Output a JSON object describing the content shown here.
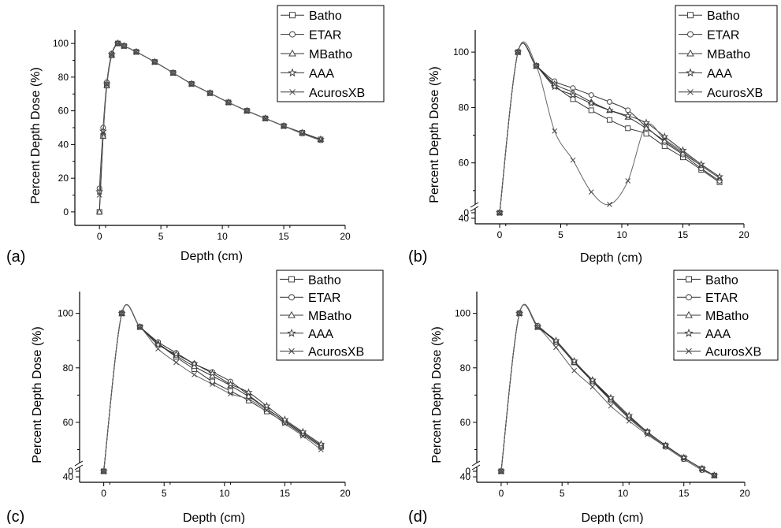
{
  "chart_data": [
    {
      "type": "line",
      "panel_label": "(a)",
      "xlabel": "Depth (cm)",
      "ylabel": "Percent Depth Dose (%)",
      "xlim": [
        -2,
        20
      ],
      "ylim": [
        -8,
        108
      ],
      "x_ticks": [
        0,
        5,
        10,
        15,
        20
      ],
      "y_ticks": [
        0,
        20,
        40,
        60,
        80,
        100
      ],
      "axis_break": false,
      "legend_position": "top-right",
      "series": [
        {
          "name": "Batho",
          "marker": "square",
          "x": [
            0,
            0.3,
            0.6,
            1.0,
            1.5,
            2.0,
            3.0,
            4.5,
            6.0,
            7.5,
            9.0,
            10.5,
            12.0,
            13.5,
            15.0,
            16.5,
            18.0
          ],
          "y": [
            0,
            45,
            75,
            93,
            100,
            98.5,
            95,
            89,
            82.5,
            76,
            70.5,
            65,
            60,
            55.5,
            51,
            47,
            43
          ]
        },
        {
          "name": "ETAR",
          "marker": "circle",
          "x": [
            0,
            0.3,
            0.6,
            1.0,
            1.5,
            2.0,
            3.0,
            4.5,
            6.0,
            7.5,
            9.0,
            10.5,
            12.0,
            13.5,
            15.0,
            16.5,
            18.0
          ],
          "y": [
            14,
            50,
            77,
            94,
            100,
            98.5,
            95,
            89,
            82.5,
            76,
            70.5,
            65,
            60,
            55.5,
            51,
            46.5,
            42.5
          ]
        },
        {
          "name": "MBatho",
          "marker": "triangle",
          "x": [
            0,
            0.3,
            0.6,
            1.0,
            1.5,
            2.0,
            3.0,
            4.5,
            6.0,
            7.5,
            9.0,
            10.5,
            12.0,
            13.5,
            15.0,
            16.5,
            18.0
          ],
          "y": [
            0,
            45,
            75,
            93,
            100,
            98.5,
            95,
            89,
            82.5,
            76,
            70.5,
            65,
            60,
            55.5,
            51,
            47,
            43
          ]
        },
        {
          "name": "AAA",
          "marker": "star",
          "x": [
            0,
            0.3,
            0.6,
            1.0,
            1.5,
            2.0,
            3.0,
            4.5,
            6.0,
            7.5,
            9.0,
            10.5,
            12.0,
            13.5,
            15.0,
            16.5,
            18.0
          ],
          "y": [
            12,
            48,
            76,
            93.5,
            100,
            98.5,
            95,
            89,
            82.5,
            76,
            70.5,
            65,
            60,
            55.5,
            51,
            47,
            43
          ]
        },
        {
          "name": "AcurosXB",
          "marker": "x",
          "x": [
            0,
            0.3,
            0.6,
            1.0,
            1.5,
            2.0,
            3.0,
            4.5,
            6.0,
            7.5,
            9.0,
            10.5,
            12.0,
            13.5,
            15.0,
            16.5,
            18.0
          ],
          "y": [
            10,
            47,
            76,
            93.5,
            100,
            98.5,
            95,
            89,
            82.5,
            76,
            70.5,
            65,
            60,
            55.5,
            51,
            46.5,
            42.5
          ]
        }
      ]
    },
    {
      "type": "line",
      "panel_label": "(b)",
      "xlabel": "Depth (cm)",
      "ylabel": "Percent Depth Dose (%)",
      "xlim": [
        -2,
        20
      ],
      "ylim": [
        38,
        108
      ],
      "x_ticks": [
        0,
        5,
        10,
        15,
        20
      ],
      "y_ticks": [
        40,
        60,
        80,
        100
      ],
      "axis_break": true,
      "below_break_tick": 0,
      "legend_position": "top-right",
      "series": [
        {
          "name": "Batho",
          "marker": "square",
          "x": [
            1.5,
            3.0,
            4.5,
            6.0,
            7.5,
            9.0,
            10.5,
            12.0,
            13.5,
            15.0,
            16.5,
            18.0
          ],
          "y": [
            100,
            95,
            88,
            83,
            79,
            75.5,
            72.5,
            70.5,
            66,
            62,
            57.5,
            53
          ]
        },
        {
          "name": "ETAR",
          "marker": "circle",
          "x": [
            1.5,
            3.0,
            4.5,
            6.0,
            7.5,
            9.0,
            10.5,
            12.0,
            13.5,
            15.0,
            16.5,
            18.0
          ],
          "y": [
            100,
            95,
            89.5,
            87,
            84.5,
            82,
            79,
            73,
            67.5,
            63,
            58,
            53.5
          ]
        },
        {
          "name": "MBatho",
          "marker": "triangle",
          "x": [
            1.5,
            3.0,
            4.5,
            6.0,
            7.5,
            9.0,
            10.5,
            12.0,
            13.5,
            15.0,
            16.5,
            18.0
          ],
          "y": [
            100,
            95,
            88.5,
            85.5,
            82,
            79,
            76.5,
            72.5,
            68,
            63.5,
            59,
            54.5
          ]
        },
        {
          "name": "AAA",
          "marker": "star",
          "x": [
            1.5,
            3.0,
            4.5,
            6.0,
            7.5,
            9.0,
            10.5,
            12.0,
            13.5,
            15.0,
            16.5,
            18.0
          ],
          "y": [
            100,
            95,
            87.5,
            84.5,
            81.5,
            79,
            77,
            74.5,
            69.5,
            64.5,
            59.5,
            55
          ]
        },
        {
          "name": "AcurosXB",
          "marker": "x",
          "x": [
            1.5,
            3.0,
            4.5,
            6.0,
            7.5,
            9.0,
            10.5,
            12.0,
            13.5,
            15.0,
            16.5,
            18.0
          ],
          "y": [
            100,
            95,
            71.5,
            61,
            49.5,
            45,
            53.5,
            73.5,
            68.5,
            64,
            59,
            54.5
          ]
        }
      ]
    },
    {
      "type": "line",
      "panel_label": "(c)",
      "xlabel": "Depth (cm)",
      "ylabel": "Percent Depth Dose (%)",
      "xlim": [
        -2,
        20
      ],
      "ylim": [
        38,
        108
      ],
      "x_ticks": [
        0,
        5,
        10,
        15,
        20
      ],
      "y_ticks": [
        40,
        60,
        80,
        100
      ],
      "axis_break": true,
      "below_break_tick": 0,
      "legend_position": "top-right",
      "series": [
        {
          "name": "Batho",
          "marker": "square",
          "x": [
            1.5,
            3.0,
            4.5,
            6.0,
            7.5,
            9.0,
            10.5,
            12.0,
            13.5,
            15.0,
            16.5,
            18.0
          ],
          "y": [
            100,
            95,
            89,
            84,
            79.5,
            75,
            71.5,
            68,
            64,
            60,
            55.5,
            51
          ]
        },
        {
          "name": "ETAR",
          "marker": "circle",
          "x": [
            1.5,
            3.0,
            4.5,
            6.0,
            7.5,
            9.0,
            10.5,
            12.0,
            13.5,
            15.0,
            16.5,
            18.0
          ],
          "y": [
            100,
            95,
            89.5,
            85.5,
            81.5,
            78.5,
            75,
            70,
            65,
            60.5,
            56,
            51.5
          ]
        },
        {
          "name": "MBatho",
          "marker": "triangle",
          "x": [
            1.5,
            3.0,
            4.5,
            6.0,
            7.5,
            9.0,
            10.5,
            12.0,
            13.5,
            15.0,
            16.5,
            18.0
          ],
          "y": [
            100,
            95,
            89,
            84.5,
            80.5,
            77,
            73.5,
            69.5,
            65,
            60.5,
            56,
            51.5
          ]
        },
        {
          "name": "AAA",
          "marker": "star",
          "x": [
            1.5,
            3.0,
            4.5,
            6.0,
            7.5,
            9.0,
            10.5,
            12.0,
            13.5,
            15.0,
            16.5,
            18.0
          ],
          "y": [
            100,
            95,
            88.5,
            85,
            81.5,
            78,
            74,
            71,
            66,
            61,
            56.5,
            52
          ]
        },
        {
          "name": "AcurosXB",
          "marker": "x",
          "x": [
            1.5,
            3.0,
            4.5,
            6.0,
            7.5,
            9.0,
            10.5,
            12.0,
            13.5,
            15.0,
            16.5,
            18.0
          ],
          "y": [
            100,
            95,
            87,
            82,
            77.5,
            74,
            70.5,
            68.5,
            64.5,
            59.5,
            55,
            50
          ]
        }
      ]
    },
    {
      "type": "line",
      "panel_label": "(d)",
      "xlabel": "Depth (cm)",
      "ylabel": "Percent Depth Dose (%)",
      "xlim": [
        -2,
        20
      ],
      "ylim": [
        38,
        108
      ],
      "x_ticks": [
        0,
        5,
        10,
        15,
        20
      ],
      "y_ticks": [
        40,
        60,
        80,
        100
      ],
      "axis_break": true,
      "below_break_tick": 0,
      "legend_position": "top-right",
      "series": [
        {
          "name": "Batho",
          "marker": "square",
          "x": [
            1.5,
            3.0,
            4.5,
            6.0,
            7.5,
            9.0,
            10.5,
            12.0,
            13.5,
            15.0,
            16.5,
            17.5
          ],
          "y": [
            100,
            95,
            89.5,
            82,
            75,
            68.5,
            62,
            56.5,
            51.5,
            47,
            43,
            40.5
          ]
        },
        {
          "name": "ETAR",
          "marker": "circle",
          "x": [
            1.5,
            3.0,
            4.5,
            6.0,
            7.5,
            9.0,
            10.5,
            12.0,
            13.5,
            15.0,
            16.5,
            17.5
          ],
          "y": [
            100,
            95.5,
            89.5,
            82,
            75,
            68,
            61.5,
            56,
            51,
            46.5,
            42.5,
            40.5
          ]
        },
        {
          "name": "MBatho",
          "marker": "triangle",
          "x": [
            1.5,
            3.0,
            4.5,
            6.0,
            7.5,
            9.0,
            10.5,
            12.0,
            13.5,
            15.0,
            16.5,
            17.5
          ],
          "y": [
            100,
            95,
            89.5,
            82,
            75.5,
            68.5,
            62,
            56.5,
            51.5,
            47,
            43,
            40.5
          ]
        },
        {
          "name": "AAA",
          "marker": "star",
          "x": [
            1.5,
            3.0,
            4.5,
            6.0,
            7.5,
            9.0,
            10.5,
            12.0,
            13.5,
            15.0,
            16.5,
            17.5
          ],
          "y": [
            100,
            95,
            90,
            82.5,
            75.5,
            69,
            62.5,
            56.5,
            51.5,
            47,
            43,
            40.5
          ]
        },
        {
          "name": "AcurosXB",
          "marker": "x",
          "x": [
            1.5,
            3.0,
            4.5,
            6.0,
            7.5,
            9.0,
            10.5,
            12.0,
            13.5,
            15.0,
            16.5,
            17.5
          ],
          "y": [
            100,
            95,
            87.5,
            79,
            73,
            66,
            60.5,
            55.5,
            51,
            46.5,
            42.5,
            40.5
          ]
        }
      ]
    }
  ]
}
